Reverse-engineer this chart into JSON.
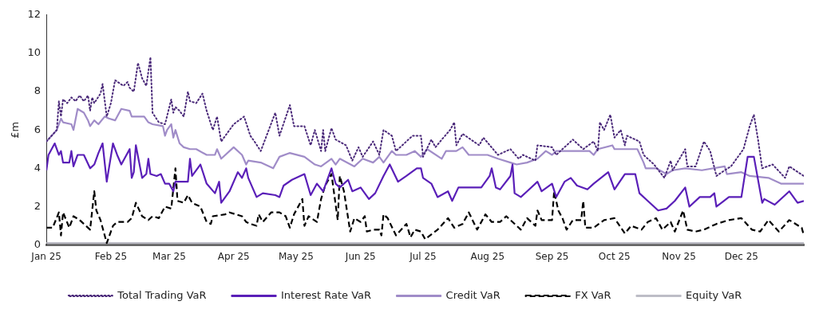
{
  "chart_data": {
    "type": "line",
    "ylabel": "£m",
    "legend": "bottom",
    "grid": false,
    "xlim": [
      "2025-01-01",
      "2025-12-31"
    ],
    "xticks": [
      {
        "value": "2025-01-01",
        "label": "Jan 25"
      },
      {
        "value": "2025-02-01",
        "label": "Feb 25"
      },
      {
        "value": "2025-03-01",
        "label": "Mar 25"
      },
      {
        "value": "2025-04-01",
        "label": "Apr 25"
      },
      {
        "value": "2025-05-01",
        "label": "May 25"
      },
      {
        "value": "2025-06-01",
        "label": "Jun 25"
      },
      {
        "value": "2025-07-01",
        "label": "Jul 25"
      },
      {
        "value": "2025-08-01",
        "label": "Aug 25"
      },
      {
        "value": "2025-09-01",
        "label": "Sep 25"
      },
      {
        "value": "2025-10-01",
        "label": "Oct 25"
      },
      {
        "value": "2025-11-01",
        "label": "Nov 25"
      },
      {
        "value": "2025-12-01",
        "label": "Dec 25"
      }
    ],
    "ylim": [
      0,
      12
    ],
    "yticks": [
      0,
      2,
      4,
      6,
      8,
      10,
      12
    ],
    "series": [
      {
        "name": "Total Trading VaR",
        "color": "#4b2a7a",
        "line_style": "dotted",
        "x": [
          "2025-01-01",
          "2025-01-06",
          "2025-01-07",
          "2025-01-08",
          "2025-01-09",
          "2025-01-11",
          "2025-01-13",
          "2025-01-15",
          "2025-01-17",
          "2025-01-19",
          "2025-01-21",
          "2025-01-22",
          "2025-01-23",
          "2025-01-24",
          "2025-01-27",
          "2025-01-28",
          "2025-01-30",
          "2025-02-01",
          "2025-02-03",
          "2025-02-07",
          "2025-02-09",
          "2025-02-10",
          "2025-02-12",
          "2025-02-14",
          "2025-02-16",
          "2025-02-18",
          "2025-02-20",
          "2025-02-21",
          "2025-02-24",
          "2025-02-27",
          "2025-03-02",
          "2025-03-03",
          "2025-03-04",
          "2025-03-06",
          "2025-03-08",
          "2025-03-10",
          "2025-03-11",
          "2025-03-14",
          "2025-03-17",
          "2025-03-19",
          "2025-03-22",
          "2025-03-24",
          "2025-03-26",
          "2025-04-01",
          "2025-04-06",
          "2025-04-09",
          "2025-04-11",
          "2025-04-14",
          "2025-04-21",
          "2025-04-23",
          "2025-04-28",
          "2025-04-30",
          "2025-05-05",
          "2025-05-08",
          "2025-05-10",
          "2025-05-13",
          "2025-05-14",
          "2025-05-15",
          "2025-05-18",
          "2025-05-20",
          "2025-05-25",
          "2025-05-28",
          "2025-05-31",
          "2025-06-02",
          "2025-06-07",
          "2025-06-10",
          "2025-06-12",
          "2025-06-16",
          "2025-06-18",
          "2025-06-21",
          "2025-06-26",
          "2025-06-30",
          "2025-07-01",
          "2025-07-05",
          "2025-07-07",
          "2025-07-10",
          "2025-07-14",
          "2025-07-16",
          "2025-07-17",
          "2025-07-20",
          "2025-07-24",
          "2025-07-28",
          "2025-07-30",
          "2025-08-06",
          "2025-08-12",
          "2025-08-16",
          "2025-08-18",
          "2025-08-24",
          "2025-08-25",
          "2025-09-01",
          "2025-09-03",
          "2025-09-11",
          "2025-09-16",
          "2025-09-21",
          "2025-09-23",
          "2025-09-24",
          "2025-09-26",
          "2025-09-29",
          "2025-10-01",
          "2025-10-04",
          "2025-10-06",
          "2025-10-07",
          "2025-10-13",
          "2025-10-15",
          "2025-10-20",
          "2025-10-25",
          "2025-10-28",
          "2025-10-29",
          "2025-11-04",
          "2025-11-05",
          "2025-11-09",
          "2025-11-13",
          "2025-11-16",
          "2025-11-19",
          "2025-11-23",
          "2025-11-26",
          "2025-12-02",
          "2025-12-05",
          "2025-12-07",
          "2025-12-09",
          "2025-12-11",
          "2025-12-16",
          "2025-12-22",
          "2025-12-24",
          "2025-12-31"
        ],
        "values": [
          5.4,
          6.0,
          7.5,
          6.7,
          7.6,
          7.4,
          7.7,
          7.5,
          7.8,
          7.5,
          7.8,
          7.0,
          7.7,
          7.4,
          7.9,
          8.4,
          6.7,
          7.4,
          8.6,
          8.3,
          8.5,
          8.2,
          8.0,
          9.5,
          8.7,
          8.3,
          9.8,
          6.9,
          6.4,
          6.3,
          7.6,
          6.9,
          7.2,
          7.0,
          6.7,
          8.0,
          7.5,
          7.4,
          7.9,
          7.0,
          6.0,
          6.7,
          5.4,
          6.3,
          6.7,
          5.7,
          5.4,
          4.9,
          6.9,
          5.7,
          7.3,
          6.2,
          6.2,
          5.2,
          6.0,
          4.9,
          6.0,
          4.9,
          6.1,
          5.5,
          5.2,
          4.4,
          5.1,
          4.6,
          5.4,
          4.7,
          6.0,
          5.7,
          4.9,
          5.2,
          5.7,
          5.7,
          4.6,
          5.5,
          5.1,
          5.5,
          6.0,
          6.4,
          5.2,
          5.8,
          5.5,
          5.2,
          5.6,
          4.7,
          5.0,
          4.5,
          4.7,
          4.4,
          5.2,
          5.1,
          4.7,
          5.5,
          5.0,
          5.4,
          4.9,
          6.4,
          6.0,
          6.8,
          5.6,
          6.0,
          5.2,
          5.7,
          5.4,
          4.7,
          4.2,
          3.5,
          4.4,
          3.9,
          5.0,
          4.1,
          4.1,
          5.4,
          4.9,
          3.6,
          3.9,
          4.1,
          5.0,
          6.2,
          6.8,
          5.5,
          4.0,
          4.2,
          3.5,
          4.1,
          3.6
        ]
      },
      {
        "name": "Interest Rate VaR",
        "color": "#5a1fb8",
        "line_style": "solid",
        "x": [
          "2025-01-01",
          "2025-01-02",
          "2025-01-05",
          "2025-01-07",
          "2025-01-08",
          "2025-01-09",
          "2025-01-12",
          "2025-01-13",
          "2025-01-14",
          "2025-01-16",
          "2025-01-19",
          "2025-01-22",
          "2025-01-24",
          "2025-01-26",
          "2025-01-28",
          "2025-01-30",
          "2025-02-02",
          "2025-02-04",
          "2025-02-06",
          "2025-02-10",
          "2025-02-11",
          "2025-02-12",
          "2025-02-13",
          "2025-02-16",
          "2025-02-18",
          "2025-02-19",
          "2025-02-20",
          "2025-02-23",
          "2025-02-25",
          "2025-02-27",
          "2025-03-01",
          "2025-03-03",
          "2025-03-04",
          "2025-03-10",
          "2025-03-11",
          "2025-03-12",
          "2025-03-16",
          "2025-03-19",
          "2025-03-23",
          "2025-03-25",
          "2025-03-26",
          "2025-03-30",
          "2025-04-03",
          "2025-04-05",
          "2025-04-07",
          "2025-04-08",
          "2025-04-12",
          "2025-04-15",
          "2025-04-21",
          "2025-04-23",
          "2025-04-25",
          "2025-04-29",
          "2025-05-05",
          "2025-05-08",
          "2025-05-11",
          "2025-05-14",
          "2025-05-18",
          "2025-05-20",
          "2025-05-22",
          "2025-05-26",
          "2025-05-28",
          "2025-06-01",
          "2025-06-05",
          "2025-06-08",
          "2025-06-12",
          "2025-06-15",
          "2025-06-19",
          "2025-06-23",
          "2025-06-28",
          "2025-06-30",
          "2025-07-01",
          "2025-07-05",
          "2025-07-08",
          "2025-07-13",
          "2025-07-15",
          "2025-07-18",
          "2025-07-22",
          "2025-07-29",
          "2025-08-02",
          "2025-08-03",
          "2025-08-05",
          "2025-08-07",
          "2025-08-12",
          "2025-08-13",
          "2025-08-14",
          "2025-08-17",
          "2025-08-20",
          "2025-08-25",
          "2025-08-27",
          "2025-09-01",
          "2025-09-03",
          "2025-09-07",
          "2025-09-10",
          "2025-09-13",
          "2025-09-18",
          "2025-09-21",
          "2025-09-28",
          "2025-10-01",
          "2025-10-06",
          "2025-10-11",
          "2025-10-13",
          "2025-10-17",
          "2025-10-22",
          "2025-10-26",
          "2025-10-30",
          "2025-11-04",
          "2025-11-06",
          "2025-11-11",
          "2025-11-16",
          "2025-11-18",
          "2025-11-19",
          "2025-11-25",
          "2025-12-01",
          "2025-12-04",
          "2025-12-07",
          "2025-12-11",
          "2025-12-12",
          "2025-12-17",
          "2025-12-24",
          "2025-12-28",
          "2025-12-31"
        ],
        "values": [
          3.9,
          4.7,
          5.3,
          4.7,
          4.9,
          4.3,
          4.3,
          4.9,
          4.1,
          4.7,
          4.7,
          4.0,
          4.2,
          4.8,
          5.3,
          3.3,
          5.3,
          4.7,
          4.2,
          5.0,
          3.5,
          3.8,
          5.2,
          3.5,
          3.7,
          4.5,
          3.7,
          3.6,
          3.7,
          3.2,
          3.2,
          2.8,
          3.3,
          3.3,
          4.5,
          3.6,
          4.2,
          3.2,
          2.7,
          3.3,
          2.2,
          2.8,
          3.8,
          3.5,
          4.0,
          3.5,
          2.5,
          2.7,
          2.6,
          2.5,
          3.1,
          3.4,
          3.7,
          2.6,
          3.2,
          2.8,
          4.0,
          3.2,
          3.0,
          3.4,
          2.8,
          3.0,
          2.4,
          2.7,
          3.6,
          4.2,
          3.3,
          3.6,
          4.0,
          4.0,
          3.5,
          3.2,
          2.5,
          2.8,
          2.3,
          3.0,
          3.0,
          3.0,
          3.6,
          4.0,
          3.0,
          2.9,
          3.6,
          4.2,
          2.7,
          2.5,
          2.8,
          3.3,
          2.8,
          3.2,
          2.5,
          3.3,
          3.5,
          3.1,
          2.9,
          3.2,
          3.8,
          2.9,
          3.7,
          3.7,
          2.7,
          2.3,
          1.8,
          1.9,
          2.3,
          3.0,
          2.0,
          2.5,
          2.5,
          2.7,
          2.0,
          2.5,
          2.5,
          4.6,
          4.6,
          2.2,
          2.4,
          2.1,
          2.8,
          2.2,
          2.3
        ]
      },
      {
        "name": "Credit VaR",
        "color": "#a08cc8",
        "line_style": "solid",
        "x": [
          "2025-01-01",
          "2025-01-06",
          "2025-01-08",
          "2025-01-09",
          "2025-01-13",
          "2025-01-14",
          "2025-01-16",
          "2025-01-19",
          "2025-01-21",
          "2025-01-22",
          "2025-01-24",
          "2025-01-26",
          "2025-01-29",
          "2025-01-31",
          "2025-02-03",
          "2025-02-06",
          "2025-02-10",
          "2025-02-11",
          "2025-02-17",
          "2025-02-19",
          "2025-02-21",
          "2025-02-26",
          "2025-02-27",
          "2025-02-28",
          "2025-03-02",
          "2025-03-03",
          "2025-03-04",
          "2025-03-06",
          "2025-03-08",
          "2025-03-11",
          "2025-03-14",
          "2025-03-19",
          "2025-03-23",
          "2025-03-24",
          "2025-03-26",
          "2025-04-01",
          "2025-04-05",
          "2025-04-07",
          "2025-04-08",
          "2025-04-14",
          "2025-04-20",
          "2025-04-23",
          "2025-04-28",
          "2025-05-05",
          "2025-05-10",
          "2025-05-13",
          "2025-05-18",
          "2025-05-20",
          "2025-05-22",
          "2025-05-29",
          "2025-06-02",
          "2025-06-07",
          "2025-06-10",
          "2025-06-12",
          "2025-06-16",
          "2025-06-18",
          "2025-06-23",
          "2025-06-27",
          "2025-06-30",
          "2025-07-03",
          "2025-07-10",
          "2025-07-12",
          "2025-07-17",
          "2025-07-20",
          "2025-07-23",
          "2025-08-01",
          "2025-08-06",
          "2025-08-12",
          "2025-08-15",
          "2025-08-20",
          "2025-08-25",
          "2025-08-29",
          "2025-09-01",
          "2025-09-03",
          "2025-09-08",
          "2025-09-19",
          "2025-09-21",
          "2025-09-23",
          "2025-09-30",
          "2025-10-01",
          "2025-10-07",
          "2025-10-12",
          "2025-10-15",
          "2025-10-16",
          "2025-10-21",
          "2025-10-26",
          "2025-10-29",
          "2025-11-04",
          "2025-11-12",
          "2025-11-23",
          "2025-11-24",
          "2025-12-01",
          "2025-12-05",
          "2025-12-14",
          "2025-12-20",
          "2025-12-31"
        ],
        "values": [
          5.4,
          6.0,
          6.6,
          6.4,
          6.3,
          6.0,
          7.1,
          6.9,
          6.5,
          6.2,
          6.5,
          6.3,
          6.7,
          6.6,
          6.5,
          7.1,
          7.0,
          6.7,
          6.7,
          6.4,
          6.3,
          6.2,
          5.7,
          6.0,
          6.3,
          5.6,
          6.0,
          5.3,
          5.1,
          5.0,
          5.0,
          4.7,
          4.7,
          5.0,
          4.5,
          5.1,
          4.7,
          4.2,
          4.4,
          4.3,
          4.0,
          4.6,
          4.8,
          4.6,
          4.2,
          4.1,
          4.5,
          4.2,
          4.5,
          4.1,
          4.5,
          4.3,
          4.6,
          4.3,
          4.9,
          4.7,
          4.7,
          4.9,
          4.6,
          5.0,
          4.5,
          4.9,
          4.9,
          5.1,
          4.7,
          4.7,
          4.5,
          4.3,
          4.2,
          4.3,
          4.5,
          4.9,
          4.7,
          4.9,
          4.9,
          4.9,
          4.7,
          5.0,
          5.2,
          5.0,
          5.0,
          5.0,
          4.3,
          4.0,
          4.0,
          3.7,
          3.9,
          4.0,
          3.9,
          4.1,
          3.7,
          3.8,
          3.6,
          3.5,
          3.2,
          3.2
        ]
      },
      {
        "name": "FX VaR",
        "color": "#000000",
        "line_style": "dashed",
        "x": [
          "2025-01-01",
          "2025-01-04",
          "2025-01-07",
          "2025-01-08",
          "2025-01-09",
          "2025-01-12",
          "2025-01-14",
          "2025-01-17",
          "2025-01-19",
          "2025-01-22",
          "2025-01-24",
          "2025-01-25",
          "2025-01-27",
          "2025-01-28",
          "2025-01-30",
          "2025-02-02",
          "2025-02-04",
          "2025-02-09",
          "2025-02-11",
          "2025-02-13",
          "2025-02-16",
          "2025-02-19",
          "2025-02-21",
          "2025-02-24",
          "2025-02-27",
          "2025-03-02",
          "2025-03-04",
          "2025-03-05",
          "2025-03-08",
          "2025-03-10",
          "2025-03-12",
          "2025-03-16",
          "2025-03-19",
          "2025-03-21",
          "2025-03-22",
          "2025-03-28",
          "2025-03-30",
          "2025-04-05",
          "2025-04-07",
          "2025-04-09",
          "2025-04-12",
          "2025-04-13",
          "2025-04-15",
          "2025-04-19",
          "2025-04-23",
          "2025-04-26",
          "2025-04-28",
          "2025-04-30",
          "2025-05-04",
          "2025-05-05",
          "2025-05-07",
          "2025-05-11",
          "2025-05-13",
          "2025-05-15",
          "2025-05-18",
          "2025-05-21",
          "2025-05-22",
          "2025-05-24",
          "2025-05-27",
          "2025-05-29",
          "2025-06-01",
          "2025-06-03",
          "2025-06-04",
          "2025-06-07",
          "2025-06-10",
          "2025-06-11",
          "2025-06-12",
          "2025-06-14",
          "2025-06-18",
          "2025-06-23",
          "2025-06-25",
          "2025-06-27",
          "2025-06-30",
          "2025-07-02",
          "2025-07-08",
          "2025-07-13",
          "2025-07-16",
          "2025-07-20",
          "2025-07-23",
          "2025-07-27",
          "2025-07-31",
          "2025-08-03",
          "2025-08-07",
          "2025-08-10",
          "2025-08-17",
          "2025-08-20",
          "2025-08-24",
          "2025-08-25",
          "2025-08-27",
          "2025-09-01",
          "2025-09-02",
          "2025-09-04",
          "2025-09-06",
          "2025-09-08",
          "2025-09-11",
          "2025-09-15",
          "2025-09-16",
          "2025-09-17",
          "2025-09-21",
          "2025-09-26",
          "2025-10-01",
          "2025-10-06",
          "2025-10-09",
          "2025-10-14",
          "2025-10-17",
          "2025-10-21",
          "2025-10-24",
          "2025-10-28",
          "2025-10-30",
          "2025-11-03",
          "2025-11-05",
          "2025-11-09",
          "2025-11-13",
          "2025-11-19",
          "2025-11-25",
          "2025-12-01",
          "2025-12-06",
          "2025-12-10",
          "2025-12-14",
          "2025-12-19",
          "2025-12-24",
          "2025-12-30",
          "2025-12-31"
        ],
        "values": [
          0.9,
          0.9,
          1.7,
          0.5,
          1.7,
          0.9,
          1.5,
          1.3,
          1.1,
          0.8,
          2.8,
          1.8,
          1.3,
          0.9,
          0.1,
          1.0,
          1.2,
          1.2,
          1.4,
          2.2,
          1.5,
          1.3,
          1.5,
          1.4,
          2.0,
          1.9,
          4.0,
          2.3,
          2.2,
          2.6,
          2.2,
          2.0,
          1.2,
          1.1,
          1.5,
          1.6,
          1.7,
          1.5,
          1.2,
          1.1,
          1.0,
          1.6,
          1.2,
          1.7,
          1.7,
          1.5,
          0.9,
          1.6,
          2.4,
          1.0,
          1.5,
          1.2,
          2.4,
          3.1,
          3.7,
          1.3,
          3.6,
          2.8,
          0.7,
          1.4,
          1.2,
          1.5,
          0.7,
          0.8,
          0.8,
          0.5,
          1.6,
          1.4,
          0.5,
          1.1,
          0.4,
          0.8,
          0.7,
          0.3,
          0.8,
          1.4,
          0.9,
          1.1,
          1.7,
          0.8,
          1.6,
          1.2,
          1.2,
          1.5,
          0.8,
          1.4,
          1.0,
          1.8,
          1.3,
          1.3,
          2.8,
          1.8,
          1.4,
          0.8,
          1.3,
          1.3,
          2.3,
          0.9,
          0.9,
          1.3,
          1.4,
          0.6,
          1.0,
          0.8,
          1.2,
          1.4,
          0.8,
          1.2,
          0.7,
          1.8,
          0.8,
          0.7,
          0.8,
          1.1,
          1.3,
          1.4,
          0.8,
          0.7,
          1.3,
          0.7,
          1.3,
          0.9,
          0.5
        ]
      },
      {
        "name": "Equity VaR",
        "color": "#bdbdc6",
        "line_style": "solid",
        "x": [
          "2025-01-01",
          "2025-03-01",
          "2025-05-01",
          "2025-07-01",
          "2025-09-01",
          "2025-11-01",
          "2025-12-31"
        ],
        "values": [
          0.1,
          0.1,
          0.1,
          0.1,
          0.1,
          0.1,
          0.1
        ]
      }
    ]
  }
}
